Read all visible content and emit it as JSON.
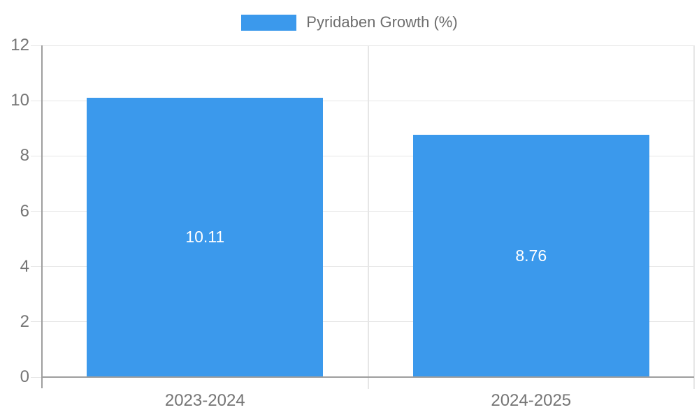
{
  "legend": {
    "label": "Pyridaben Growth (%)"
  },
  "chart_data": {
    "type": "bar",
    "title": "",
    "xlabel": "",
    "ylabel": "",
    "categories": [
      "2023-2024",
      "2024-2025"
    ],
    "series": [
      {
        "name": "Pyridaben Growth (%)",
        "values": [
          10.11,
          8.76
        ]
      }
    ],
    "data_labels": [
      "10.11",
      "8.76"
    ],
    "ylim": [
      0,
      12
    ],
    "yticks": [
      0,
      2,
      4,
      6,
      8,
      10,
      12
    ],
    "grid": true,
    "legend_position": "top-center",
    "colors": {
      "bar": "#3B99EC",
      "data_label": "#FFFFFF",
      "axis_line": "#9E9E9E",
      "gridline": "#E6E6E6",
      "tick_label": "#757575",
      "legend_text": "#6E6E6E",
      "background": "#FFFFFF"
    }
  }
}
